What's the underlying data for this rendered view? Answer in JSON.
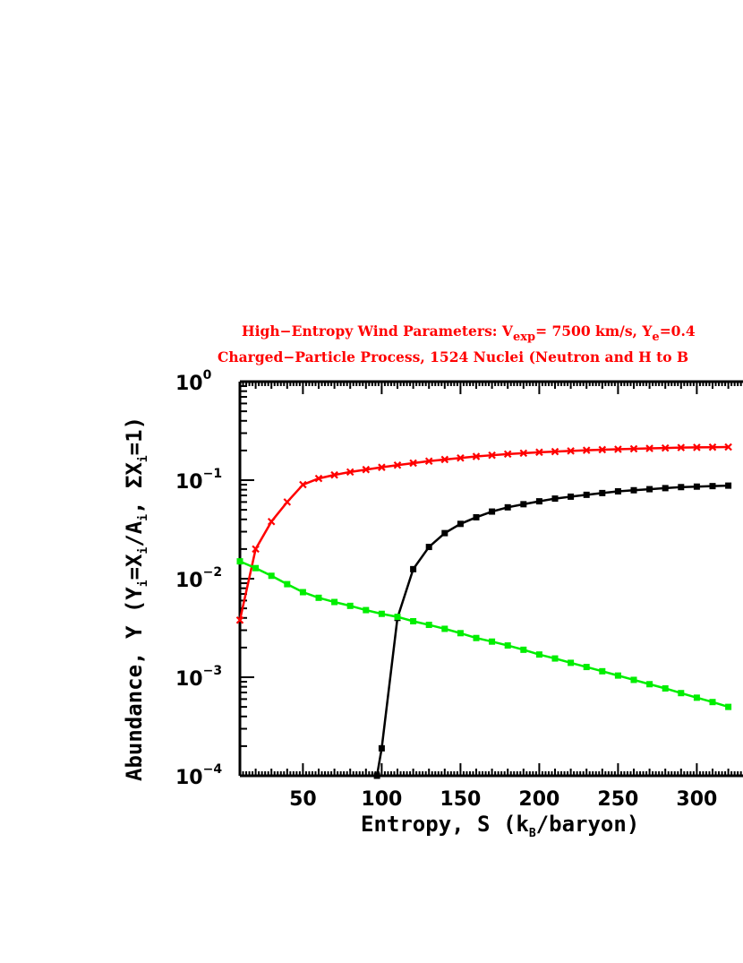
{
  "chart_data": {
    "type": "line",
    "title_line1": {
      "pre": "High−Entropy Wind Parameters: V",
      "sub1": "exp",
      "mid": "= 7500 km/s, Y",
      "sub2": "e",
      "post": "=0.4"
    },
    "title_line2": "Charged−Particle Process, 1524 Nuclei (Neutron and H to B",
    "xlabel": {
      "pre": "Entropy, S (k",
      "sub": "B",
      "post": "/baryon)"
    },
    "ylabel": {
      "p1": "Abundance, Y (Y",
      "s1": "i",
      "p2": "=X",
      "s2": "i",
      "p3": "/A",
      "s3": "i",
      "p4": ", ΣX",
      "s4": "i",
      "p5": "=1)"
    },
    "x_ticks": [
      50,
      100,
      150,
      200,
      250,
      300
    ],
    "y_ticks": [
      {
        "base": "10",
        "exp": "0",
        "value": 1
      },
      {
        "base": "10",
        "exp": "−1",
        "value": 0.1
      },
      {
        "base": "10",
        "exp": "−2",
        "value": 0.01
      },
      {
        "base": "10",
        "exp": "−3",
        "value": 0.001
      },
      {
        "base": "10",
        "exp": "−4",
        "value": 0.0001
      }
    ],
    "xlim": [
      10,
      330
    ],
    "ylim": [
      0.0001,
      1
    ],
    "yscale": "log",
    "grid": false,
    "series": [
      {
        "color": "#ff0000",
        "marker": "x",
        "x": [
          10,
          20,
          30,
          40,
          50,
          60,
          70,
          80,
          90,
          100,
          110,
          120,
          130,
          140,
          150,
          160,
          170,
          180,
          190,
          200,
          210,
          220,
          230,
          240,
          250,
          260,
          270,
          280,
          290,
          300,
          310,
          320,
          330
        ],
        "y": [
          0.0038,
          0.02,
          0.038,
          0.06,
          0.09,
          0.104,
          0.113,
          0.121,
          0.128,
          0.135,
          0.142,
          0.149,
          0.156,
          0.162,
          0.168,
          0.174,
          0.179,
          0.184,
          0.188,
          0.192,
          0.195,
          0.198,
          0.201,
          0.204,
          0.206,
          0.208,
          0.21,
          0.212,
          0.214,
          0.215,
          0.216,
          0.217,
          0.218
        ]
      },
      {
        "color": "#000000",
        "marker": "square",
        "x": [
          97,
          100,
          110,
          120,
          130,
          140,
          150,
          160,
          170,
          180,
          190,
          200,
          210,
          220,
          230,
          240,
          250,
          260,
          270,
          280,
          290,
          300,
          310,
          320,
          330
        ],
        "y": [
          0.0001,
          0.00019,
          0.004,
          0.0125,
          0.021,
          0.029,
          0.036,
          0.042,
          0.048,
          0.053,
          0.057,
          0.061,
          0.065,
          0.068,
          0.071,
          0.074,
          0.077,
          0.079,
          0.081,
          0.083,
          0.085,
          0.086,
          0.087,
          0.088,
          0.089
        ]
      },
      {
        "color": "#00ee00",
        "marker": "square",
        "x": [
          10,
          20,
          30,
          40,
          50,
          60,
          70,
          80,
          90,
          100,
          110,
          120,
          130,
          140,
          150,
          160,
          170,
          180,
          190,
          200,
          210,
          220,
          230,
          240,
          250,
          260,
          270,
          280,
          290,
          300,
          310,
          320,
          330
        ],
        "y": [
          0.015,
          0.0128,
          0.0107,
          0.0088,
          0.0073,
          0.0064,
          0.0058,
          0.0053,
          0.0048,
          0.0044,
          0.0041,
          0.0037,
          0.0034,
          0.0031,
          0.0028,
          0.0025,
          0.0023,
          0.0021,
          0.0019,
          0.0017,
          0.00155,
          0.0014,
          0.00127,
          0.00115,
          0.00104,
          0.00094,
          0.00085,
          0.00077,
          0.00069,
          0.00062,
          0.00056,
          0.0005,
          0.00045
        ]
      }
    ]
  }
}
